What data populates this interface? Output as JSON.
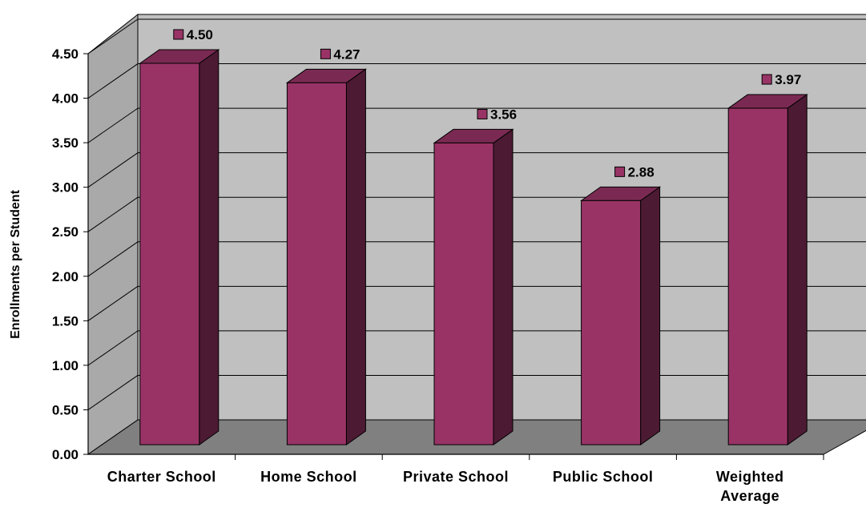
{
  "chart_data": {
    "type": "bar",
    "title": "",
    "ylabel": "Enrollments per Student",
    "xlabel": "",
    "categories": [
      "Charter School",
      "Home School",
      "Private School",
      "Public School",
      "Weighted Average"
    ],
    "values": [
      4.5,
      4.27,
      3.56,
      2.88,
      3.97
    ],
    "data_labels": [
      "4.50",
      "4.27",
      "3.56",
      "2.88",
      "3.97"
    ],
    "ylim": [
      0,
      4.5
    ],
    "yticks": [
      "0.00",
      "0.50",
      "1.00",
      "1.50",
      "2.00",
      "2.50",
      "3.00",
      "3.50",
      "4.00",
      "4.50"
    ],
    "grid": true,
    "legend": "none",
    "three_d": true,
    "colors": {
      "bar_front": "#993366",
      "bar_top": "#7a2a52",
      "bar_side": "#4d1a33",
      "wall": "#c0c0c0",
      "side_wall": "#a9a9a9",
      "floor": "#808080",
      "grid": "#000000"
    }
  }
}
